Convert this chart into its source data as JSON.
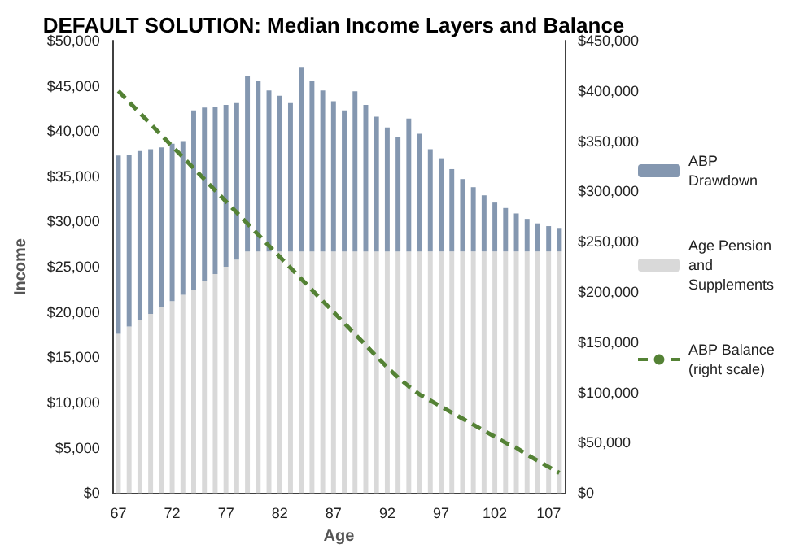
{
  "chart_data": {
    "type": "bar",
    "title": "DEFAULT SOLUTION: Median Income Layers and Balance",
    "xlabel": "Age",
    "ylabel": "Income",
    "categories": [
      "67",
      null,
      null,
      null,
      null,
      "72",
      null,
      null,
      null,
      null,
      "77",
      null,
      null,
      null,
      null,
      "82",
      null,
      null,
      null,
      null,
      "87",
      null,
      null,
      null,
      null,
      "92",
      null,
      null,
      null,
      null,
      "97",
      null,
      null,
      null,
      null,
      "102",
      null,
      null,
      null,
      null,
      "107",
      null
    ],
    "stacked": true,
    "series": [
      {
        "name": "Age Pension and Supplements",
        "color": "#d9d9d9",
        "values": [
          17600,
          18400,
          19100,
          19800,
          20600,
          21200,
          21900,
          22400,
          23400,
          24200,
          25000,
          25800,
          26700,
          26700,
          26700,
          26700,
          26700,
          26700,
          26700,
          26700,
          26700,
          26700,
          26700,
          26700,
          26700,
          26700,
          26700,
          26700,
          26700,
          26700,
          26700,
          26700,
          26700,
          26700,
          26700,
          26700,
          26700,
          26700,
          26700,
          26700,
          26700,
          26700
        ]
      },
      {
        "name": "ABP Drawdown",
        "color": "#8497b0",
        "values": [
          19700,
          19000,
          18700,
          18200,
          17600,
          17400,
          17000,
          19900,
          19200,
          18500,
          17900,
          17300,
          19400,
          18800,
          17800,
          17200,
          16400,
          20300,
          18900,
          17800,
          16600,
          15600,
          17700,
          16200,
          14900,
          13700,
          12600,
          14700,
          13000,
          11300,
          10300,
          9100,
          8000,
          7100,
          6200,
          5400,
          4800,
          4200,
          3600,
          3100,
          2800,
          2600
        ]
      },
      {
        "name": "ABP Balance (right scale)",
        "type": "line",
        "axis": "y2",
        "color": "#548235",
        "line_style": "dashed",
        "marker": "none",
        "values": [
          400000,
          389000,
          378000,
          367000,
          356000,
          345000,
          334000,
          323000,
          312000,
          301000,
          290000,
          279000,
          268000,
          257000,
          246000,
          235000,
          224000,
          213000,
          202000,
          191000,
          180000,
          169000,
          158000,
          147000,
          136000,
          125000,
          115000,
          106000,
          98000,
          92000,
          86000,
          80000,
          74000,
          68000,
          62000,
          56000,
          50000,
          45000,
          38000,
          32000,
          26000,
          20000
        ]
      }
    ],
    "ylim": [
      0,
      50000
    ],
    "yticks": [
      {
        "value": 0,
        "label": "$0"
      },
      {
        "value": 5000,
        "label": "$5,000"
      },
      {
        "value": 10000,
        "label": "$10,000"
      },
      {
        "value": 15000,
        "label": "$15,000"
      },
      {
        "value": 20000,
        "label": "$20,000"
      },
      {
        "value": 25000,
        "label": "$25,000"
      },
      {
        "value": 30000,
        "label": "$30,000"
      },
      {
        "value": 35000,
        "label": "$35,000"
      },
      {
        "value": 40000,
        "label": "$40,000"
      },
      {
        "value": 45000,
        "label": "$45,000"
      },
      {
        "value": 50000,
        "label": "$50,000"
      }
    ],
    "y2lim": [
      0,
      450000
    ],
    "y2ticks": [
      {
        "value": 0,
        "label": "$0"
      },
      {
        "value": 50000,
        "label": "$50,000"
      },
      {
        "value": 100000,
        "label": "$100,000"
      },
      {
        "value": 150000,
        "label": "$150,000"
      },
      {
        "value": 200000,
        "label": "$200,000"
      },
      {
        "value": 250000,
        "label": "$250,000"
      },
      {
        "value": 300000,
        "label": "$300,000"
      },
      {
        "value": 350000,
        "label": "$350,000"
      },
      {
        "value": 400000,
        "label": "$400,000"
      },
      {
        "value": 450000,
        "label": "$450,000"
      }
    ],
    "grid": false,
    "legend": "right"
  }
}
